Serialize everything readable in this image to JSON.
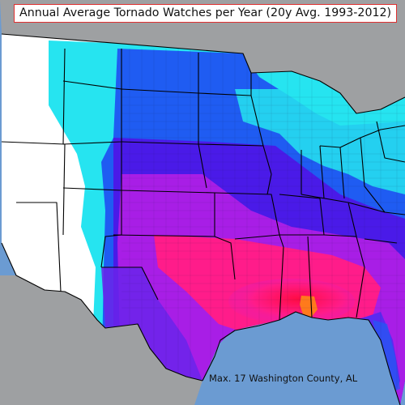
{
  "title": "Annual Average Tornado Watches per Year (20y Avg. 1993-2012)",
  "annotation": "Max. 17 Washington County, AL",
  "colors": {
    "ocean": "#6b9bd2",
    "neighbor_land": "#9ea0a2",
    "zero": "#ffffff",
    "low": "#26e4f0",
    "medium_low": "#1f5cf2",
    "medium": "#4a1ae8",
    "medium_high": "#a81ee6",
    "high": "#ff1c8a",
    "max": "#ff7a1c",
    "border": "#000000",
    "title_border": "#e03030"
  },
  "regions": [
    {
      "name": "west",
      "level": "zero"
    },
    {
      "name": "northern-plains",
      "level": "low"
    },
    {
      "name": "great-lakes",
      "level": "low"
    },
    {
      "name": "midwest",
      "level": "medium_low"
    },
    {
      "name": "central-plains",
      "level": "medium"
    },
    {
      "name": "southern-plains",
      "level": "medium_high"
    },
    {
      "name": "gulf-coast",
      "level": "high"
    },
    {
      "name": "washington-county-al",
      "level": "max"
    }
  ]
}
